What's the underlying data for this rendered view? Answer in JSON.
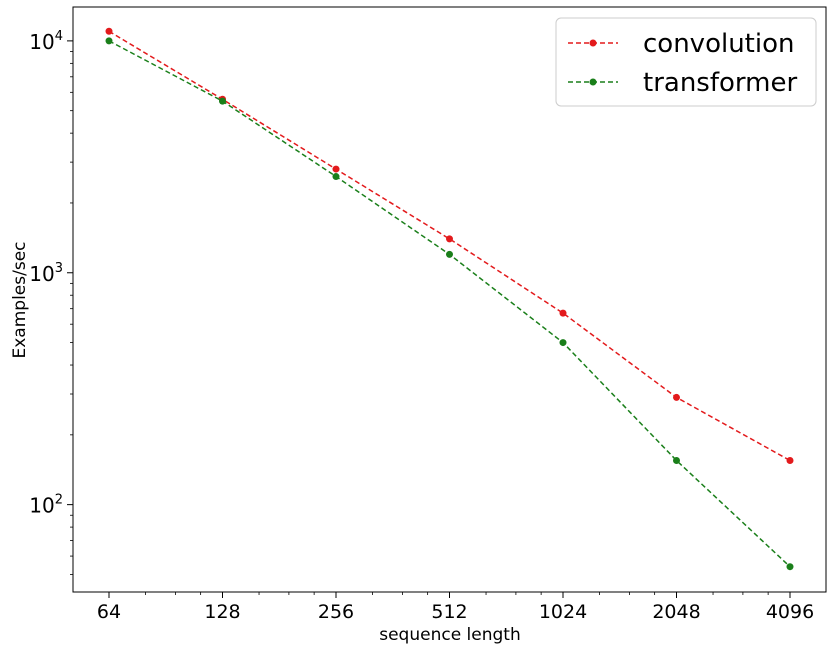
{
  "chart_data": {
    "type": "line",
    "title": "",
    "xlabel": "sequence length",
    "ylabel": "Examples/sec",
    "x_scale": "log2",
    "y_scale": "log10",
    "x": [
      64,
      128,
      256,
      512,
      1024,
      2048,
      4096
    ],
    "x_tick_labels": [
      "64",
      "128",
      "256",
      "512",
      "1024",
      "2048",
      "4096"
    ],
    "y_ticks": [
      {
        "value": 100,
        "base": "10",
        "exp": "2"
      },
      {
        "value": 1000,
        "base": "10",
        "exp": "3"
      },
      {
        "value": 10000,
        "base": "10",
        "exp": "4"
      }
    ],
    "ylim": [
      42,
      14000
    ],
    "grid": false,
    "legend_position": "top-right",
    "series": [
      {
        "name": "convolution",
        "color": "#e31a1c",
        "line_style": "dashed",
        "marker": "circle",
        "values": [
          11000,
          5600,
          2800,
          1400,
          670,
          290,
          155
        ]
      },
      {
        "name": "transformer",
        "color": "#1a7f1a",
        "line_style": "dashed",
        "marker": "circle",
        "values": [
          10000,
          5500,
          2600,
          1200,
          500,
          155,
          54
        ]
      }
    ]
  }
}
